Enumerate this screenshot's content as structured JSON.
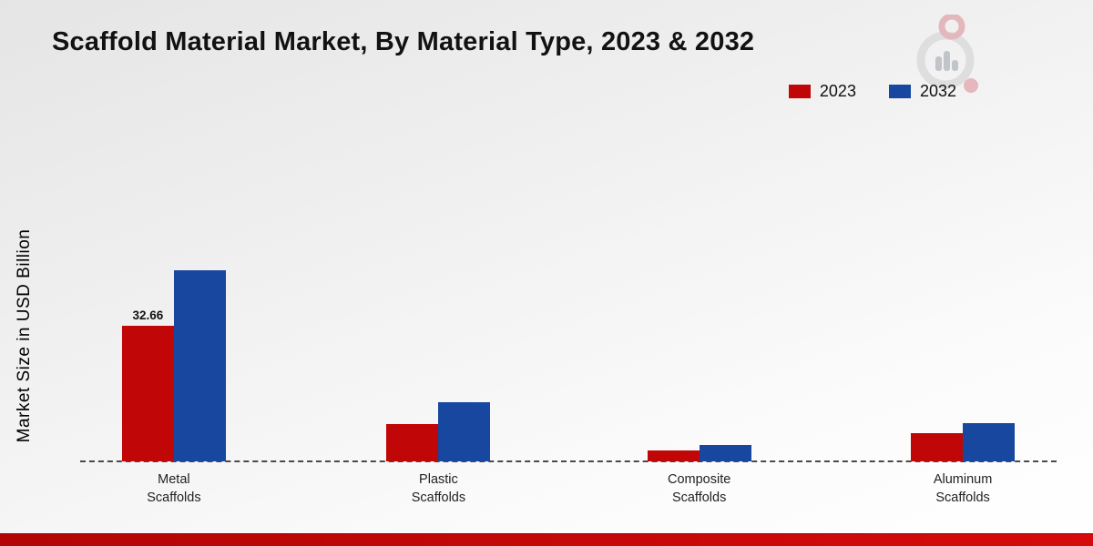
{
  "title": "Scaffold Material Market, By Material Type, 2023 & 2032",
  "ylabel": "Market Size in USD Billion",
  "legend": [
    {
      "label": "2023",
      "color": "#c00606"
    },
    {
      "label": "2032",
      "color": "#17479e"
    }
  ],
  "colors": {
    "bar_2023": "#c00606",
    "bar_2032": "#17479e",
    "footer_band": "#c00606"
  },
  "chart_data": {
    "type": "bar",
    "categories": [
      "Metal Scaffolds",
      "Plastic Scaffolds",
      "Composite Scaffolds",
      "Aluminum Scaffolds"
    ],
    "series": [
      {
        "name": "2023",
        "color": "#c00606",
        "values": [
          32.66,
          9.0,
          2.6,
          6.7
        ]
      },
      {
        "name": "2032",
        "color": "#17479e",
        "values": [
          46.0,
          14.2,
          4.0,
          9.1
        ]
      }
    ],
    "data_labels": [
      {
        "category_index": 0,
        "series_index": 0,
        "text": "32.66"
      }
    ],
    "title": "Scaffold Material Market, By Material Type, 2023 & 2032",
    "xlabel": "",
    "ylabel": "Market Size in USD Billion",
    "ylim": [
      0,
      50
    ],
    "grid": false,
    "baseline_style": "dashed",
    "legend_position": "top-right"
  }
}
